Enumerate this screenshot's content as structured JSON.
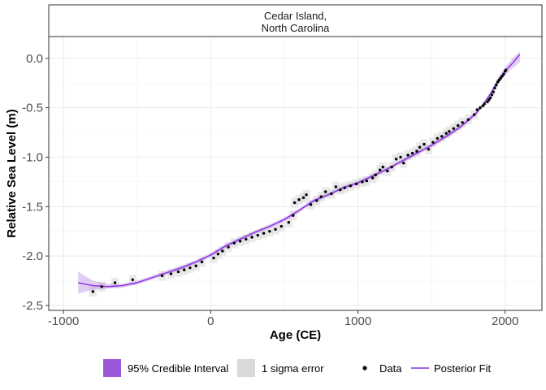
{
  "chart_data": {
    "type": "scatter",
    "panel_title": [
      "Cedar Island,",
      "North Carolina"
    ],
    "xlabel": "Age (CE)",
    "ylabel": "Relative Sea Level (m)",
    "xlim": [
      -1100,
      2250
    ],
    "ylim": [
      -2.55,
      0.22
    ],
    "x_ticks": [
      -1000,
      0,
      1000,
      2000
    ],
    "x_tick_labels": [
      "-1000",
      "0",
      "1000",
      "2000"
    ],
    "y_ticks": [
      0.0,
      -0.5,
      -1.0,
      -1.5,
      -2.0,
      -2.5
    ],
    "y_tick_labels": [
      "0.0",
      "-0.5",
      "-1.0",
      "-1.5",
      "-2.0",
      "-2.5"
    ],
    "grid": true,
    "colors": {
      "credible_interval": "#9b59d9",
      "fit_line": "#8a2be2",
      "sigma_error": "#d9d9d9",
      "points": "#000000"
    },
    "legend": {
      "position": "bottom",
      "items": [
        {
          "label": "95% Credible Interval",
          "key": "fill-purple"
        },
        {
          "label": "1 sigma error",
          "key": "fill-grey"
        },
        {
          "label": "Data",
          "key": "point"
        },
        {
          "label": "Posterior Fit",
          "key": "line"
        }
      ]
    },
    "posterior_fit": {
      "x": [
        -900,
        -800,
        -700,
        -600,
        -500,
        -400,
        -300,
        -200,
        -100,
        0,
        100,
        200,
        300,
        400,
        500,
        600,
        700,
        800,
        900,
        1000,
        1100,
        1200,
        1300,
        1400,
        1500,
        1600,
        1700,
        1800,
        1850,
        1900,
        1950,
        2000,
        2050,
        2100
      ],
      "y": [
        -2.27,
        -2.3,
        -2.31,
        -2.3,
        -2.27,
        -2.22,
        -2.17,
        -2.12,
        -2.06,
        -1.99,
        -1.9,
        -1.83,
        -1.76,
        -1.7,
        -1.63,
        -1.54,
        -1.44,
        -1.38,
        -1.31,
        -1.26,
        -1.19,
        -1.12,
        -1.04,
        -0.96,
        -0.88,
        -0.79,
        -0.69,
        -0.56,
        -0.47,
        -0.36,
        -0.23,
        -0.13,
        -0.05,
        0.04
      ],
      "lower": [
        -2.38,
        -2.34,
        -2.33,
        -2.32,
        -2.29,
        -2.24,
        -2.19,
        -2.14,
        -2.08,
        -2.01,
        -1.92,
        -1.85,
        -1.78,
        -1.72,
        -1.65,
        -1.56,
        -1.46,
        -1.4,
        -1.33,
        -1.28,
        -1.21,
        -1.14,
        -1.06,
        -0.98,
        -0.9,
        -0.81,
        -0.71,
        -0.58,
        -0.49,
        -0.38,
        -0.26,
        -0.17,
        -0.1,
        -0.04
      ],
      "upper": [
        -2.16,
        -2.25,
        -2.28,
        -2.28,
        -2.25,
        -2.2,
        -2.15,
        -2.1,
        -2.04,
        -1.97,
        -1.88,
        -1.81,
        -1.74,
        -1.68,
        -1.61,
        -1.52,
        -1.42,
        -1.36,
        -1.29,
        -1.24,
        -1.17,
        -1.1,
        -1.02,
        -0.94,
        -0.86,
        -0.77,
        -0.67,
        -0.54,
        -0.45,
        -0.34,
        -0.2,
        -0.09,
        0.0,
        0.07
      ]
    },
    "data_points": [
      {
        "x": -800,
        "y": -2.36
      },
      {
        "x": -740,
        "y": -2.31
      },
      {
        "x": -650,
        "y": -2.27
      },
      {
        "x": -530,
        "y": -2.24
      },
      {
        "x": -330,
        "y": -2.2
      },
      {
        "x": -270,
        "y": -2.18
      },
      {
        "x": -220,
        "y": -2.16
      },
      {
        "x": -180,
        "y": -2.14
      },
      {
        "x": -140,
        "y": -2.12
      },
      {
        "x": -100,
        "y": -2.1
      },
      {
        "x": -60,
        "y": -2.06
      },
      {
        "x": 20,
        "y": -2.02
      },
      {
        "x": 50,
        "y": -1.98
      },
      {
        "x": 80,
        "y": -1.95
      },
      {
        "x": 120,
        "y": -1.91
      },
      {
        "x": 160,
        "y": -1.87
      },
      {
        "x": 200,
        "y": -1.85
      },
      {
        "x": 240,
        "y": -1.83
      },
      {
        "x": 280,
        "y": -1.81
      },
      {
        "x": 320,
        "y": -1.79
      },
      {
        "x": 360,
        "y": -1.77
      },
      {
        "x": 400,
        "y": -1.75
      },
      {
        "x": 440,
        "y": -1.73
      },
      {
        "x": 480,
        "y": -1.7
      },
      {
        "x": 530,
        "y": -1.66
      },
      {
        "x": 560,
        "y": -1.59
      },
      {
        "x": 570,
        "y": -1.46
      },
      {
        "x": 600,
        "y": -1.43
      },
      {
        "x": 630,
        "y": -1.41
      },
      {
        "x": 650,
        "y": -1.38
      },
      {
        "x": 680,
        "y": -1.48
      },
      {
        "x": 720,
        "y": -1.44
      },
      {
        "x": 750,
        "y": -1.4
      },
      {
        "x": 780,
        "y": -1.35
      },
      {
        "x": 820,
        "y": -1.37
      },
      {
        "x": 850,
        "y": -1.3
      },
      {
        "x": 880,
        "y": -1.33
      },
      {
        "x": 910,
        "y": -1.31
      },
      {
        "x": 950,
        "y": -1.29
      },
      {
        "x": 990,
        "y": -1.27
      },
      {
        "x": 1030,
        "y": -1.25
      },
      {
        "x": 1060,
        "y": -1.24
      },
      {
        "x": 1100,
        "y": -1.21
      },
      {
        "x": 1120,
        "y": -1.18
      },
      {
        "x": 1150,
        "y": -1.13
      },
      {
        "x": 1170,
        "y": -1.1
      },
      {
        "x": 1200,
        "y": -1.14
      },
      {
        "x": 1230,
        "y": -1.1
      },
      {
        "x": 1260,
        "y": -1.02
      },
      {
        "x": 1290,
        "y": -1.0
      },
      {
        "x": 1310,
        "y": -1.06
      },
      {
        "x": 1340,
        "y": -0.98
      },
      {
        "x": 1370,
        "y": -0.96
      },
      {
        "x": 1400,
        "y": -0.94
      },
      {
        "x": 1420,
        "y": -0.9
      },
      {
        "x": 1450,
        "y": -0.87
      },
      {
        "x": 1480,
        "y": -0.92
      },
      {
        "x": 1510,
        "y": -0.85
      },
      {
        "x": 1540,
        "y": -0.81
      },
      {
        "x": 1570,
        "y": -0.79
      },
      {
        "x": 1600,
        "y": -0.76
      },
      {
        "x": 1620,
        "y": -0.74
      },
      {
        "x": 1650,
        "y": -0.71
      },
      {
        "x": 1680,
        "y": -0.68
      },
      {
        "x": 1710,
        "y": -0.65
      },
      {
        "x": 1750,
        "y": -0.62
      },
      {
        "x": 1790,
        "y": -0.57
      },
      {
        "x": 1810,
        "y": -0.52
      },
      {
        "x": 1830,
        "y": -0.5
      },
      {
        "x": 1850,
        "y": -0.48
      },
      {
        "x": 1860,
        "y": -0.46
      },
      {
        "x": 1880,
        "y": -0.44
      },
      {
        "x": 1890,
        "y": -0.42
      },
      {
        "x": 1900,
        "y": -0.4
      },
      {
        "x": 1910,
        "y": -0.37
      },
      {
        "x": 1920,
        "y": -0.34
      },
      {
        "x": 1930,
        "y": -0.3
      },
      {
        "x": 1940,
        "y": -0.27
      },
      {
        "x": 1950,
        "y": -0.24
      },
      {
        "x": 1960,
        "y": -0.22
      },
      {
        "x": 1970,
        "y": -0.2
      },
      {
        "x": 1980,
        "y": -0.18
      },
      {
        "x": 1990,
        "y": -0.16
      },
      {
        "x": 2000,
        "y": -0.13
      },
      {
        "x": 2005,
        "y": -0.12
      }
    ]
  }
}
